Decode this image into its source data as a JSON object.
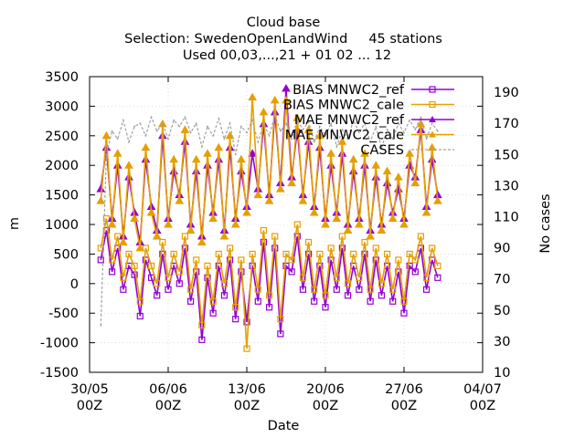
{
  "chart_data": {
    "type": "line",
    "title_lines": [
      "Cloud base",
      "Selection: SwedenOpenLandWind     45 stations",
      "Used 00,03,...,21 + 01 02 ... 12"
    ],
    "xlabel": "Date",
    "ylabel": "m",
    "y2label": "No cases",
    "x_ticks": [
      {
        "x": 0,
        "line1": "30/05",
        "line2": "00Z"
      },
      {
        "x": 7,
        "line1": "06/06",
        "line2": "00Z"
      },
      {
        "x": 14,
        "line1": "13/06",
        "line2": "00Z"
      },
      {
        "x": 21,
        "line1": "20/06",
        "line2": "00Z"
      },
      {
        "x": 28,
        "line1": "27/06",
        "line2": "00Z"
      },
      {
        "x": 35,
        "line1": "04/07",
        "line2": "00Z"
      }
    ],
    "xlim": [
      0,
      35
    ],
    "ylim": [
      -1500,
      3500
    ],
    "y_ticks": [
      -1500,
      -1000,
      -500,
      0,
      500,
      1000,
      1500,
      2000,
      2500,
      3000,
      3500
    ],
    "y2lim": [
      10,
      200
    ],
    "y2_ticks": [
      10,
      30,
      50,
      70,
      90,
      110,
      130,
      150,
      170,
      190
    ],
    "legend_position": "top-right",
    "grid": true,
    "colors": {
      "ref": "#9400d3",
      "cale": "#e69f00",
      "cases": "#a0a0a0"
    },
    "series": [
      {
        "name": "BIAS MNWC2_ref",
        "axis": "y",
        "style": "solid",
        "marker": "square",
        "color": "#9400d3",
        "x": [
          1.0,
          1.5,
          2.0,
          2.5,
          3.0,
          3.5,
          4.0,
          4.5,
          5.0,
          5.5,
          6.0,
          6.5,
          7.0,
          7.5,
          8.0,
          8.5,
          9.0,
          9.5,
          10.0,
          10.5,
          11.0,
          11.5,
          12.0,
          12.5,
          13.0,
          13.5,
          14.0,
          14.5,
          15.0,
          15.5,
          16.0,
          16.5,
          17.0,
          17.5,
          18.0,
          18.5,
          19.0,
          19.5,
          20.0,
          20.5,
          21.0,
          21.5,
          22.0,
          22.5,
          23.0,
          23.5,
          24.0,
          24.5,
          25.0,
          25.5,
          26.0,
          26.5,
          27.0,
          27.5,
          28.0,
          28.5,
          29.0,
          29.5,
          30.0,
          30.5,
          31.0
        ],
        "y": [
          400,
          900,
          200,
          600,
          -100,
          300,
          150,
          -550,
          400,
          100,
          -200,
          500,
          -100,
          300,
          0,
          600,
          -300,
          200,
          -950,
          100,
          -500,
          300,
          -200,
          400,
          -600,
          200,
          -650,
          300,
          -300,
          700,
          -400,
          600,
          -850,
          300,
          200,
          800,
          -100,
          500,
          -300,
          300,
          -400,
          400,
          -100,
          600,
          -200,
          300,
          -100,
          500,
          -300,
          400,
          -200,
          300,
          -300,
          200,
          -500,
          300,
          200,
          600,
          -100,
          400,
          100
        ]
      },
      {
        "name": "BIAS MNWC2_cale",
        "axis": "y",
        "style": "solid",
        "marker": "square",
        "color": "#e69f00",
        "x": [
          1.0,
          1.5,
          2.0,
          2.5,
          3.0,
          3.5,
          4.0,
          4.5,
          5.0,
          5.5,
          6.0,
          6.5,
          7.0,
          7.5,
          8.0,
          8.5,
          9.0,
          9.5,
          10.0,
          10.5,
          11.0,
          11.5,
          12.0,
          12.5,
          13.0,
          13.5,
          14.0,
          14.5,
          15.0,
          15.5,
          16.0,
          16.5,
          17.0,
          17.5,
          18.0,
          18.5,
          19.0,
          19.5,
          20.0,
          20.5,
          21.0,
          21.5,
          22.0,
          22.5,
          23.0,
          23.5,
          24.0,
          24.5,
          25.0,
          25.5,
          26.0,
          26.5,
          27.0,
          27.5,
          28.0,
          28.5,
          29.0,
          29.5,
          30.0,
          30.5,
          31.0
        ],
        "y": [
          600,
          1100,
          400,
          800,
          100,
          500,
          300,
          -300,
          600,
          300,
          0,
          700,
          100,
          500,
          200,
          800,
          -100,
          400,
          -700,
          300,
          -300,
          500,
          0,
          600,
          -400,
          400,
          -1100,
          500,
          -100,
          900,
          -200,
          800,
          -600,
          500,
          400,
          1000,
          100,
          700,
          -100,
          500,
          -200,
          600,
          100,
          800,
          0,
          500,
          100,
          700,
          -100,
          600,
          0,
          500,
          -100,
          400,
          -300,
          500,
          400,
          800,
          100,
          600,
          300
        ]
      },
      {
        "name": "MAE MNWC2_ref",
        "axis": "y",
        "style": "solid",
        "marker": "triangle",
        "color": "#9400d3",
        "x": [
          1.0,
          1.5,
          2.0,
          2.5,
          3.0,
          3.5,
          4.0,
          4.5,
          5.0,
          5.5,
          6.0,
          6.5,
          7.0,
          7.5,
          8.0,
          8.5,
          9.0,
          9.5,
          10.0,
          10.5,
          11.0,
          11.5,
          12.0,
          12.5,
          13.0,
          13.5,
          14.0,
          14.5,
          15.0,
          15.5,
          16.0,
          16.5,
          17.0,
          17.5,
          18.0,
          18.5,
          19.0,
          19.5,
          20.0,
          20.5,
          21.0,
          21.5,
          22.0,
          22.5,
          23.0,
          23.5,
          24.0,
          24.5,
          25.0,
          25.5,
          26.0,
          26.5,
          27.0,
          27.5,
          28.0,
          28.5,
          29.0,
          29.5,
          30.0,
          30.5,
          31.0
        ],
        "y": [
          1600,
          2300,
          1100,
          2000,
          800,
          1800,
          1200,
          700,
          2100,
          1300,
          900,
          2500,
          1100,
          1900,
          1500,
          2400,
          1000,
          1900,
          800,
          2000,
          1200,
          2100,
          900,
          2300,
          1100,
          1900,
          1300,
          2200,
          1600,
          2700,
          1500,
          2900,
          1700,
          3300,
          1800,
          2600,
          1500,
          2400,
          1300,
          2300,
          1100,
          2000,
          1200,
          2200,
          1000,
          1900,
          1100,
          2000,
          900,
          1800,
          1000,
          1700,
          1200,
          1600,
          1100,
          2000,
          1800,
          2600,
          1300,
          2100,
          1500
        ]
      },
      {
        "name": "MAE MNWC2_cale",
        "axis": "y",
        "style": "solid",
        "marker": "triangle",
        "color": "#e69f00",
        "x": [
          1.0,
          1.5,
          2.0,
          2.5,
          3.0,
          3.5,
          4.0,
          4.5,
          5.0,
          5.5,
          6.0,
          6.5,
          7.0,
          7.5,
          8.0,
          8.5,
          9.0,
          9.5,
          10.0,
          10.5,
          11.0,
          11.5,
          12.0,
          12.5,
          13.0,
          13.5,
          14.0,
          14.5,
          15.0,
          15.5,
          16.0,
          16.5,
          17.0,
          17.5,
          18.0,
          18.5,
          19.0,
          19.5,
          20.0,
          20.5,
          21.0,
          21.5,
          22.0,
          22.5,
          23.0,
          23.5,
          24.0,
          24.5,
          25.0,
          25.5,
          26.0,
          26.5,
          27.0,
          27.5,
          28.0,
          28.5,
          29.0,
          29.5,
          30.0,
          30.5,
          31.0
        ],
        "y": [
          1400,
          2500,
          1000,
          2200,
          700,
          2000,
          1100,
          600,
          2300,
          1200,
          800,
          2700,
          1000,
          2100,
          1400,
          2600,
          900,
          2100,
          700,
          2200,
          1100,
          2300,
          800,
          2500,
          1000,
          2100,
          1200,
          3150,
          1500,
          2900,
          1400,
          3100,
          1600,
          3100,
          1700,
          2800,
          1400,
          2600,
          1200,
          2500,
          1000,
          2200,
          1100,
          2400,
          900,
          2100,
          1000,
          2200,
          800,
          2000,
          900,
          1900,
          1100,
          1800,
          1000,
          2200,
          1700,
          2700,
          1200,
          2300,
          1400
        ]
      },
      {
        "name": "CASES",
        "axis": "y2",
        "style": "dashed",
        "marker": "dot",
        "color": "#a0a0a0",
        "x": [
          1.0,
          1.5,
          2.0,
          2.5,
          3.0,
          3.5,
          4.0,
          4.5,
          5.0,
          5.5,
          6.0,
          6.5,
          7.0,
          7.5,
          8.0,
          8.5,
          9.0,
          9.5,
          10.0,
          10.5,
          11.0,
          11.5,
          12.0,
          12.5,
          13.0,
          13.5,
          14.0,
          14.5,
          15.0,
          15.5,
          16.0,
          16.5,
          17.0,
          17.5,
          18.0,
          18.5,
          19.0,
          19.5,
          20.0,
          20.5,
          21.0,
          21.5,
          22.0,
          22.5,
          23.0,
          23.5,
          24.0,
          24.5,
          25.0,
          25.5,
          26.0,
          26.5,
          27.0,
          27.5,
          28.0,
          28.5,
          29.0,
          29.5,
          30.0,
          30.5,
          31.0
        ],
        "y": [
          40,
          150,
          165,
          160,
          172,
          158,
          168,
          170,
          162,
          174,
          165,
          170,
          160,
          172,
          168,
          174,
          164,
          170,
          155,
          168,
          162,
          173,
          160,
          170,
          150,
          168,
          164,
          172,
          158,
          170,
          162,
          175,
          165,
          170,
          160,
          172,
          166,
          171,
          158,
          168,
          162,
          170,
          155,
          166,
          160,
          172,
          164,
          170,
          158,
          168,
          154,
          166,
          160,
          170,
          164,
          172,
          166,
          174,
          160,
          170,
          165
        ]
      }
    ]
  }
}
